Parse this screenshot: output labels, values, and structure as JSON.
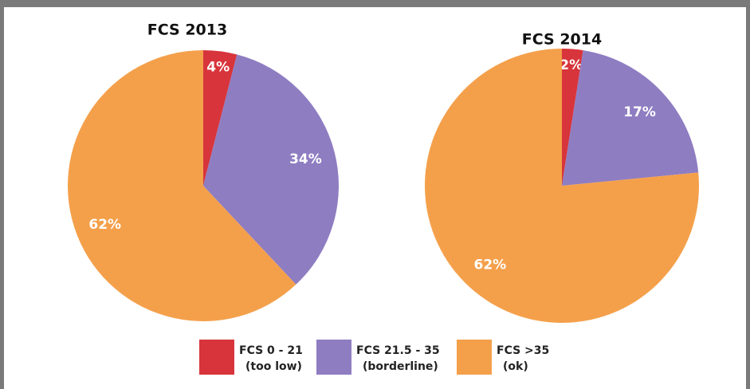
{
  "chart_data": [
    {
      "type": "pie",
      "title": "FCS 2013",
      "categories": [
        "FCS 0 - 21",
        "FCS 21.5 - 35",
        "FCS >35"
      ],
      "values": [
        4,
        34,
        62
      ],
      "value_labels": [
        "4%",
        "34%",
        "62%"
      ],
      "colors": [
        "#d7353b",
        "#8f7dc2",
        "#f4a04b"
      ]
    },
    {
      "type": "pie",
      "title": "FCS 2014",
      "categories": [
        "FCS 0 - 21",
        "FCS 21.5 - 35",
        "FCS >35"
      ],
      "values": [
        2,
        17,
        62
      ],
      "value_labels": [
        "2%",
        "17%",
        "62%"
      ],
      "colors": [
        "#d7353b",
        "#8f7dc2",
        "#f4a04b"
      ]
    }
  ],
  "legend": {
    "items": [
      {
        "name": "FCS 0 - 21",
        "note": "(too low)",
        "color": "#d7353b"
      },
      {
        "name": "FCS 21.5 - 35",
        "note": "(borderline)",
        "color": "#8f7dc2"
      },
      {
        "name": "FCS >35",
        "note": "(ok)",
        "color": "#f4a04b"
      }
    ]
  }
}
